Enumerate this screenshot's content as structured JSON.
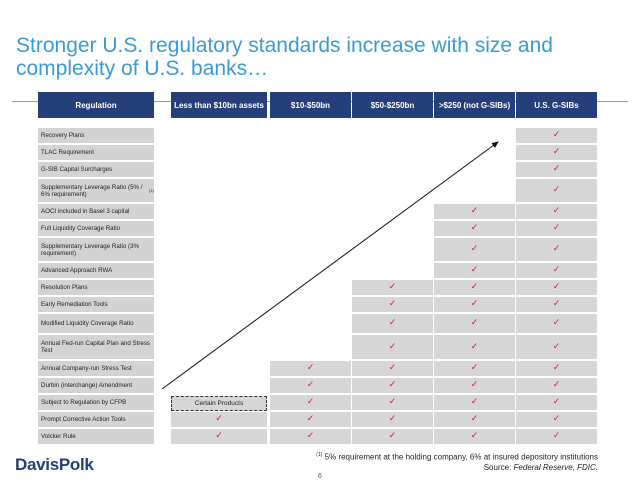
{
  "title": "Stronger U.S. regulatory standards increase with size and complexity of U.S. banks…",
  "columns": [
    "Regulation",
    "Less than $10bn assets",
    "$10-$50bn",
    "$50-$250bn",
    ">$250 (not G-SIBs)",
    "U.S. G-SIBs"
  ],
  "rows": [
    {
      "label": "Recovery Plans",
      "marks": [
        false,
        false,
        false,
        false,
        true
      ]
    },
    {
      "label": "TLAC Requirement",
      "marks": [
        false,
        false,
        false,
        false,
        true
      ]
    },
    {
      "label": "G-SIB Capital Surcharges",
      "marks": [
        false,
        false,
        false,
        false,
        true
      ]
    },
    {
      "label": "Supplementary Leverage Ratio (5% / 6%  requirement)",
      "footnote_ref": "(1)",
      "marks": [
        false,
        false,
        false,
        false,
        true
      ]
    },
    {
      "label": "AOCI included in Basel 3 capital",
      "marks": [
        false,
        false,
        false,
        true,
        true
      ]
    },
    {
      "label": "Full Liquidity Coverage Ratio",
      "marks": [
        false,
        false,
        false,
        true,
        true
      ]
    },
    {
      "label": "Supplementary Leverage Ratio (3% requirement)",
      "marks": [
        false,
        false,
        false,
        true,
        true
      ]
    },
    {
      "label": "Advanced Approach RWA",
      "marks": [
        false,
        false,
        false,
        true,
        true
      ]
    },
    {
      "label": "Resolution Plans",
      "marks": [
        false,
        false,
        true,
        true,
        true
      ]
    },
    {
      "label": "Early Remediation Tools",
      "marks": [
        false,
        false,
        true,
        true,
        true
      ]
    },
    {
      "label": "Modified Liquidity Coverage Ratio",
      "marks": [
        false,
        false,
        true,
        true,
        true
      ]
    },
    {
      "label": "Annual Fed-run Capital Plan and Stress Test",
      "marks": [
        false,
        false,
        true,
        true,
        true
      ]
    },
    {
      "label": "Annual Company-run Stress Test",
      "marks": [
        false,
        true,
        true,
        true,
        true
      ]
    },
    {
      "label": "Durbin (interchange) Amendment",
      "marks": [
        false,
        true,
        true,
        true,
        true
      ]
    },
    {
      "label": "Subject to Regulation by CFPB",
      "marks": [
        false,
        true,
        true,
        true,
        true
      ],
      "first_col_text": "Certain Products"
    },
    {
      "label": "Prompt Corrective Action Tools",
      "marks": [
        true,
        true,
        true,
        true,
        true
      ]
    },
    {
      "label": "Volcker Rule",
      "marks": [
        true,
        true,
        true,
        true,
        true
      ]
    }
  ],
  "check_glyph": "✓",
  "check_color": "#d11f1f",
  "header_color": "#253f7a",
  "title_color": "#3a9ad9",
  "logo": "DavisPolk",
  "footnote_marker": "(1)",
  "footnote": "5% requirement at the holding company, 6% at insured depository institutions",
  "source_label": "Source:",
  "source": "Federal Reserve, FDIC.",
  "page_number": "6"
}
